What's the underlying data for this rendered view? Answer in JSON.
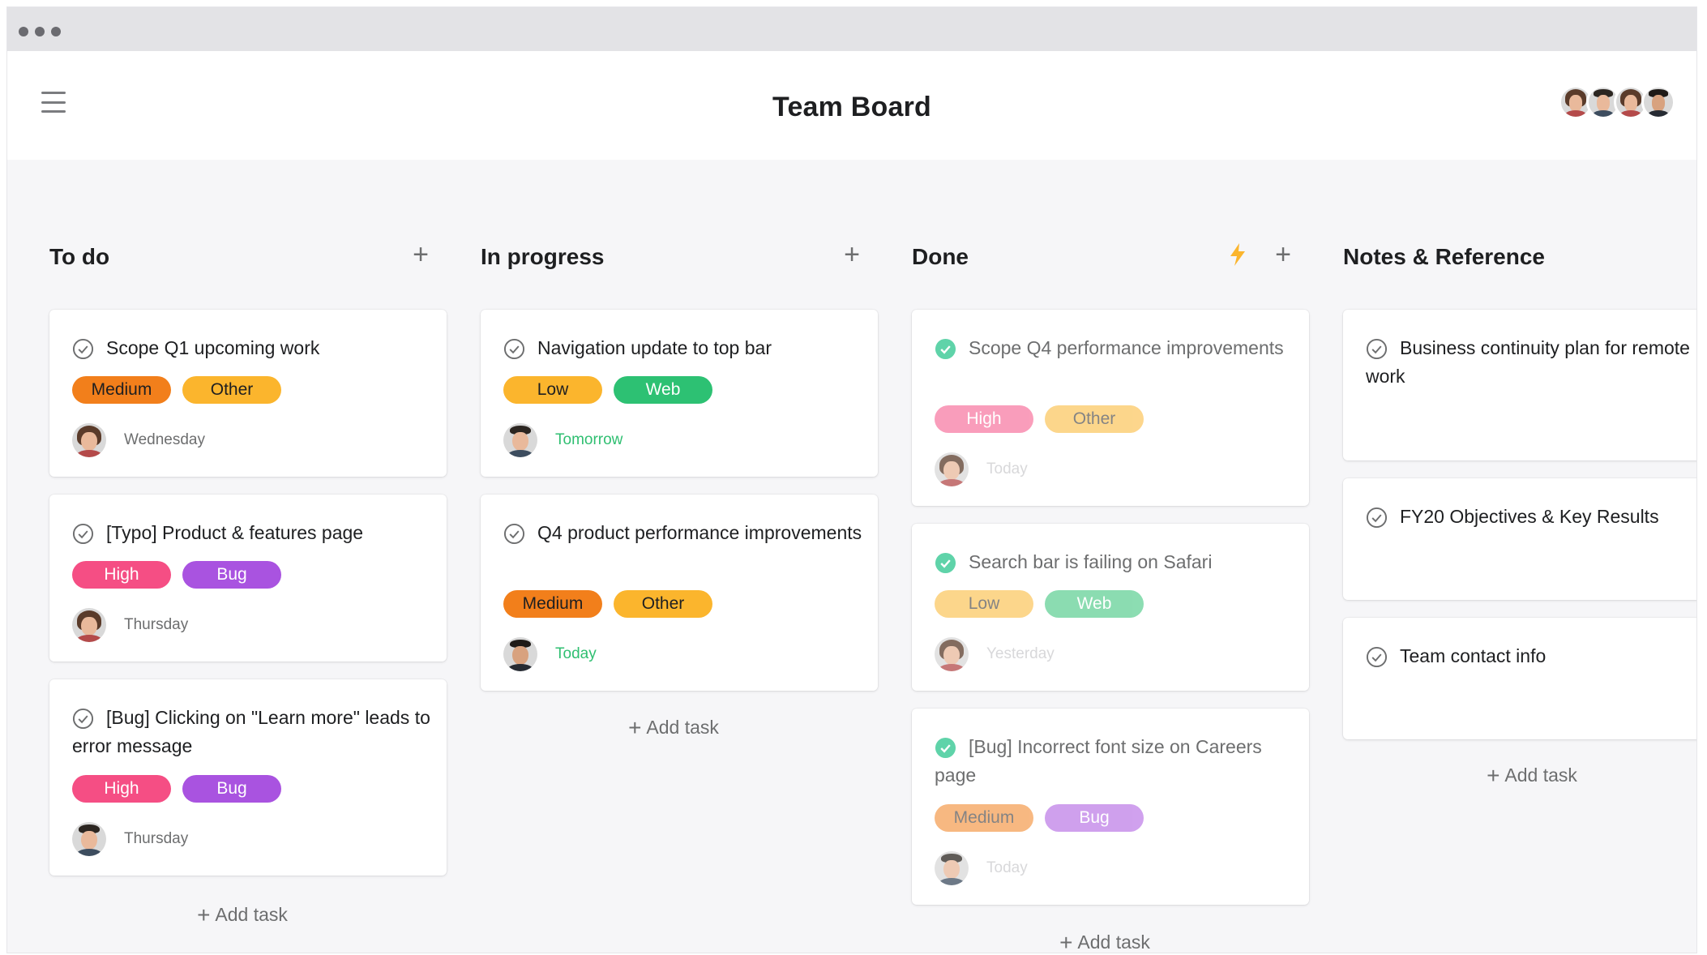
{
  "app": {
    "title": "Team Board"
  },
  "header": {
    "members": [
      {
        "name": "member-1",
        "style": "f2"
      },
      {
        "name": "member-2",
        "style": "m1"
      },
      {
        "name": "member-3",
        "style": "f1"
      },
      {
        "name": "member-4",
        "style": "m2"
      }
    ]
  },
  "colors": {
    "medium": "#f27f1b",
    "other": "#fbb52d",
    "high": "#f54e84",
    "bug": "#a953e0",
    "low": "#fbb52d",
    "web": "#2dc173",
    "done_check": "#5fd3a9",
    "bolt": "#fbb52d"
  },
  "columns": [
    {
      "title": "To do",
      "add_task": "Add task",
      "cards": [
        {
          "title": "Scope Q1 upcoming work",
          "tags": [
            "Medium",
            "Other"
          ],
          "due": "Wednesday"
        },
        {
          "title": "[Typo] Product & features page",
          "tags": [
            "High",
            "Bug"
          ],
          "due": "Thursday"
        },
        {
          "title": "[Bug] Clicking on \"Learn more\" leads to error message",
          "tags": [
            "High",
            "Bug"
          ],
          "due": "Thursday"
        }
      ]
    },
    {
      "title": "In progress",
      "add_task": "Add task",
      "cards": [
        {
          "title": "Navigation update to top bar",
          "tags": [
            "Low",
            "Web"
          ],
          "due": "Tomorrow"
        },
        {
          "title": "Q4 product performance improvements",
          "tags": [
            "Medium",
            "Other"
          ],
          "due": "Today"
        }
      ]
    },
    {
      "title": "Done",
      "add_task": "Add task",
      "icon": "lightning-bolt-icon",
      "cards": [
        {
          "title": "Scope Q4 performance improvements",
          "tags": [
            "High",
            "Other"
          ],
          "due": "Today"
        },
        {
          "title": "Search bar is failing on Safari",
          "tags": [
            "Low",
            "Web"
          ],
          "due": "Yesterday"
        },
        {
          "title": "[Bug] Incorrect font size on Careers page",
          "tags": [
            "Medium",
            "Bug"
          ],
          "due": "Today"
        }
      ]
    },
    {
      "title": "Notes & Reference",
      "add_task": "Add task",
      "cards": [
        {
          "title": "Business continuity plan for remote work"
        },
        {
          "title": "FY20 Objectives & Key Results"
        },
        {
          "title": "Team contact info"
        }
      ]
    }
  ]
}
